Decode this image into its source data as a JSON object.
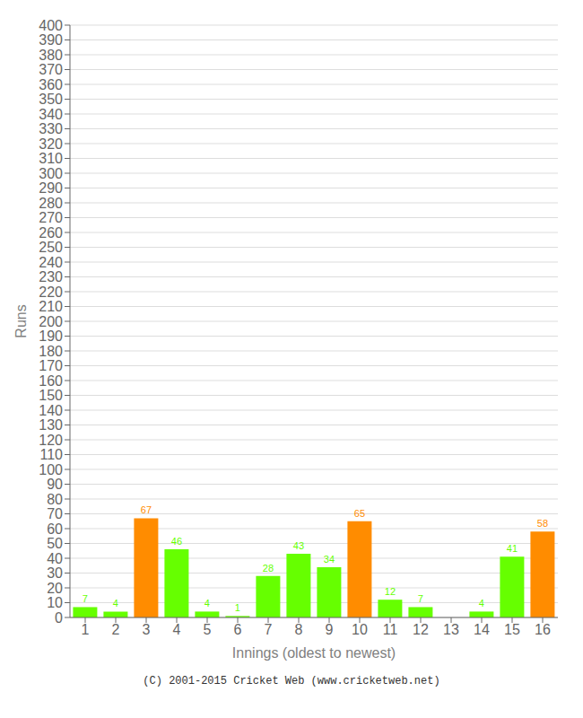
{
  "chart_data": {
    "type": "bar",
    "xlabel": "Innings (oldest to newest)",
    "ylabel": "Runs",
    "categories": [
      "1",
      "2",
      "3",
      "4",
      "5",
      "6",
      "7",
      "8",
      "9",
      "10",
      "11",
      "12",
      "13",
      "14",
      "15",
      "16"
    ],
    "values": [
      7,
      4,
      67,
      46,
      4,
      1,
      28,
      43,
      34,
      65,
      12,
      7,
      0,
      4,
      41,
      58
    ],
    "colors": [
      "#66ff00",
      "#66ff00",
      "#ff8c00",
      "#66ff00",
      "#66ff00",
      "#66ff00",
      "#66ff00",
      "#66ff00",
      "#66ff00",
      "#ff8c00",
      "#66ff00",
      "#66ff00",
      "#66ff00",
      "#66ff00",
      "#66ff00",
      "#ff8c00"
    ],
    "ylim": [
      0,
      400
    ],
    "yticks": [
      0,
      10,
      20,
      30,
      40,
      50,
      60,
      70,
      80,
      90,
      100,
      110,
      120,
      130,
      140,
      150,
      160,
      170,
      180,
      190,
      200,
      210,
      220,
      230,
      240,
      250,
      260,
      270,
      280,
      290,
      300,
      310,
      320,
      330,
      340,
      350,
      360,
      370,
      380,
      390,
      400
    ],
    "grid": true,
    "data_labels": true,
    "annotations": [
      "(C) 2001-2015 Cricket Web (www.cricketweb.net)"
    ]
  }
}
